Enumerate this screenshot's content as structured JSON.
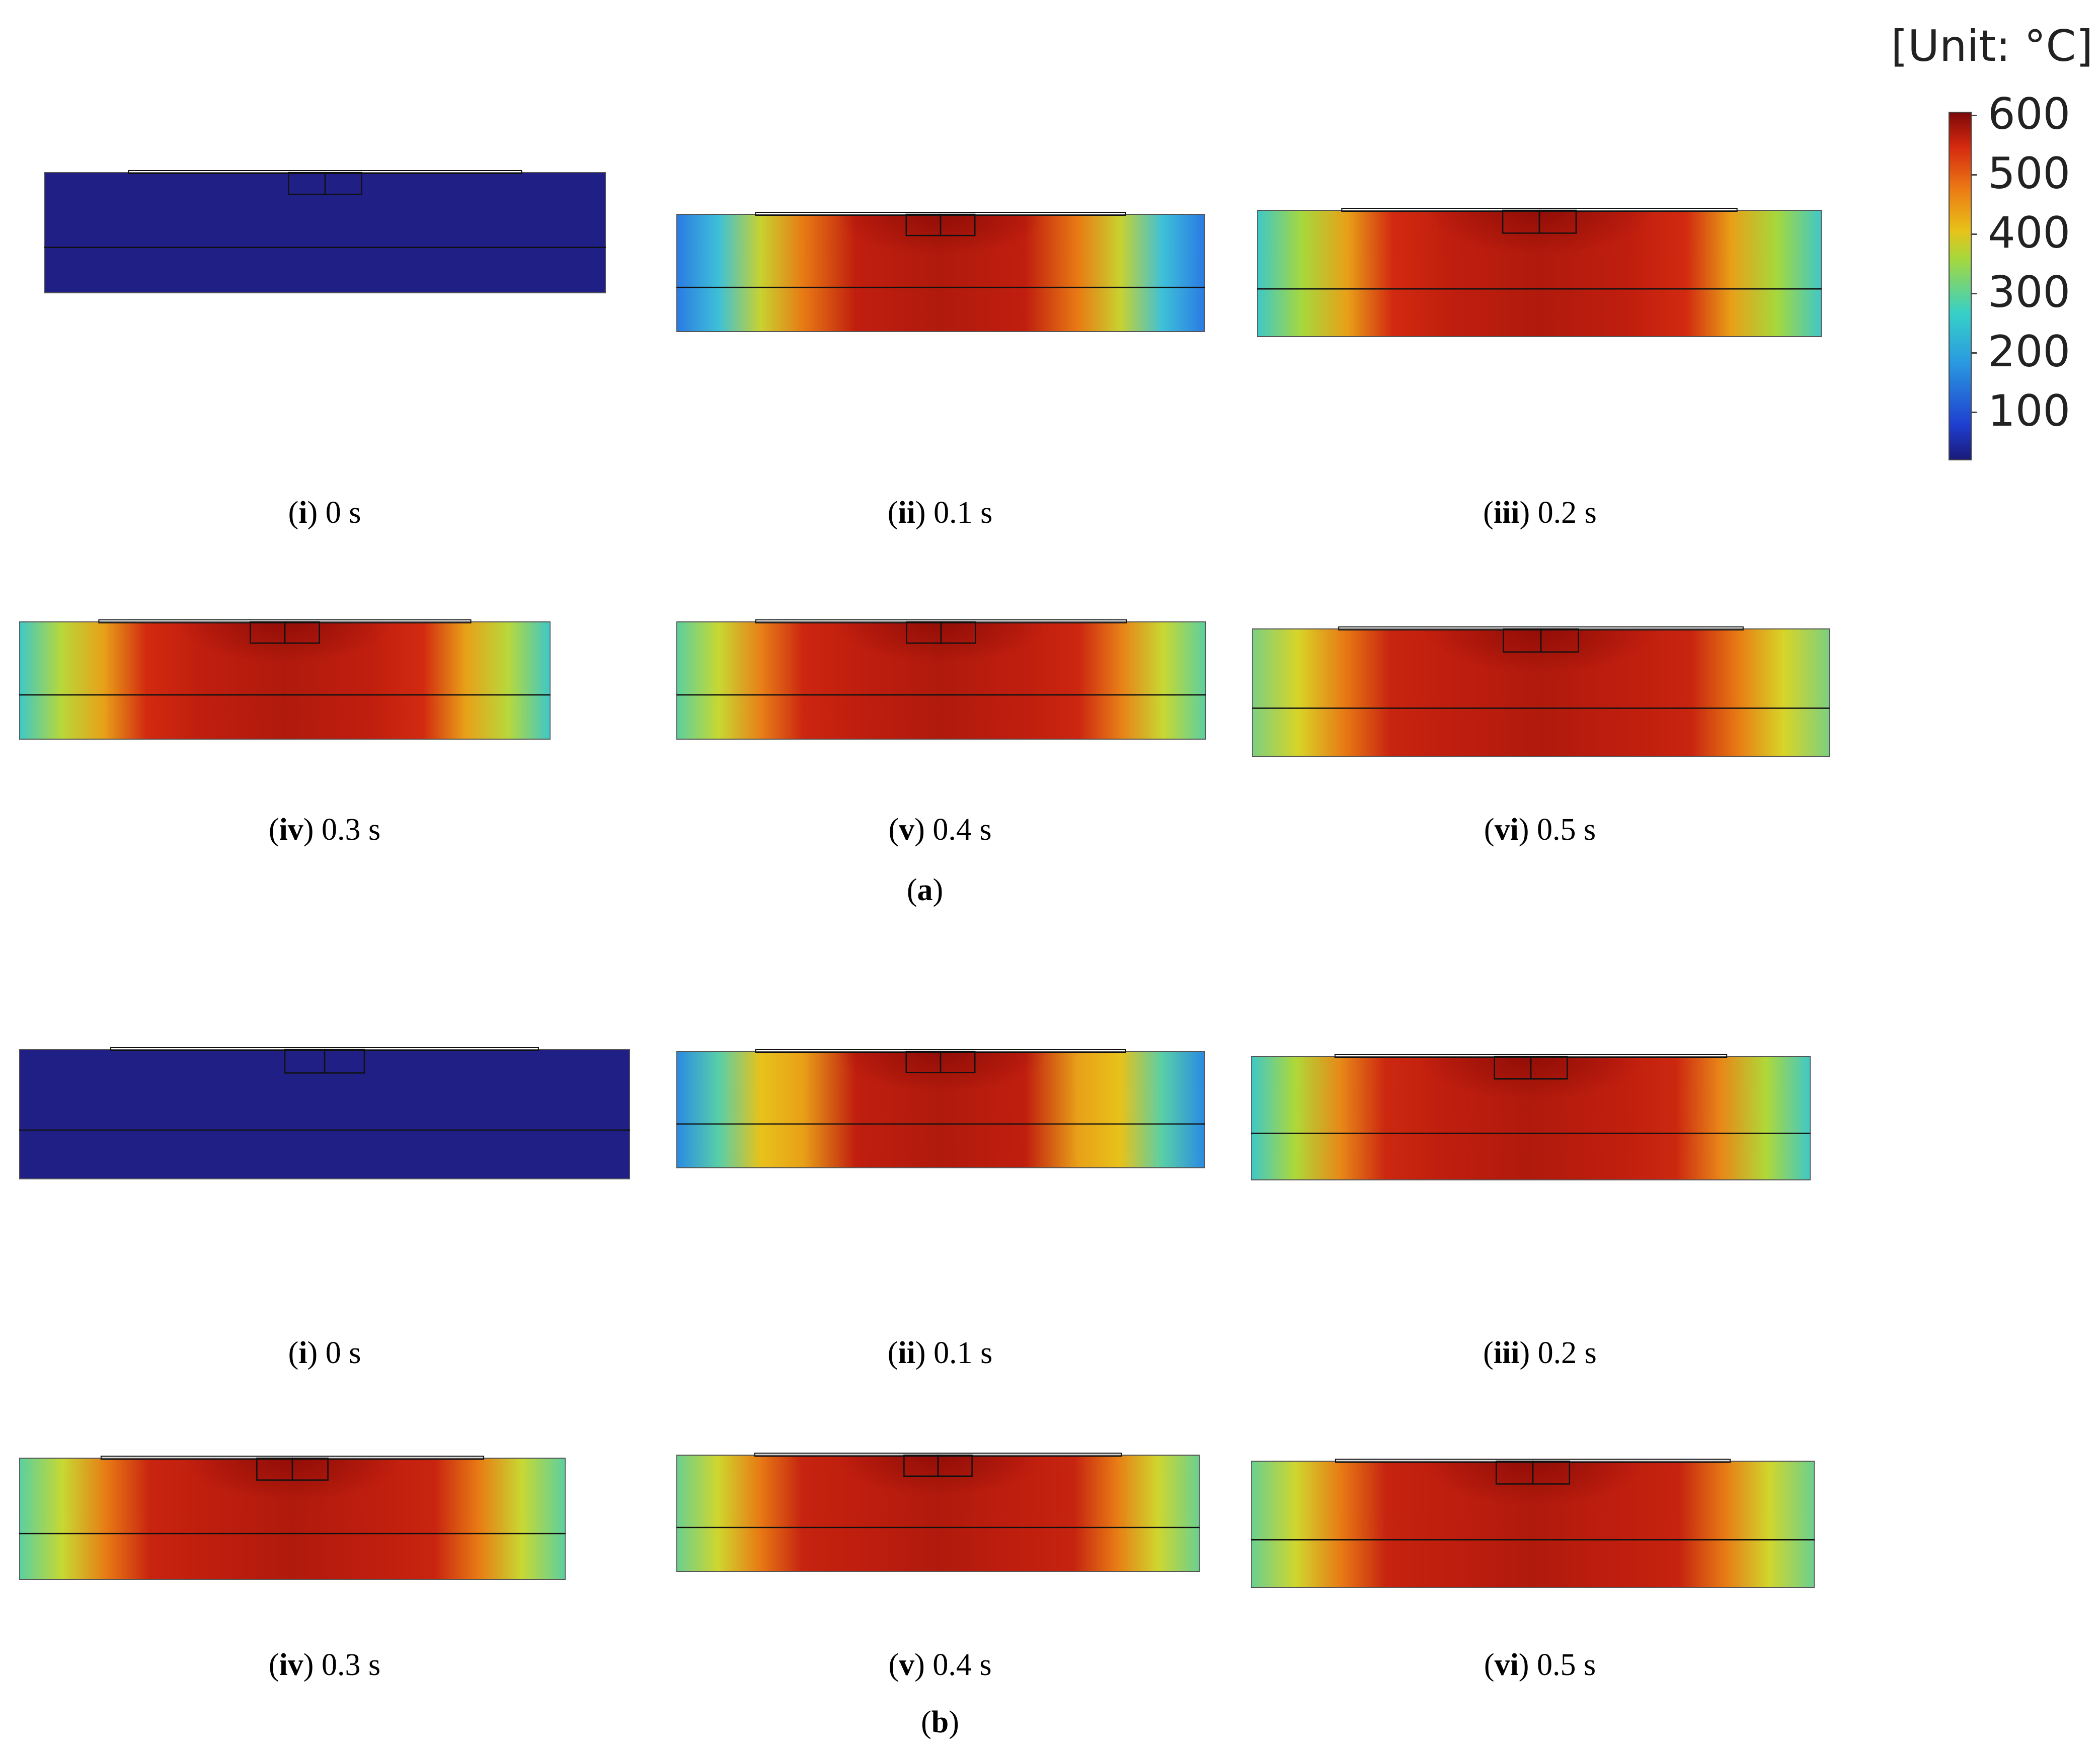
{
  "legend": {
    "unit_title": "[Unit: °C]",
    "max": 600,
    "min": 0,
    "ticks": [
      "600",
      "500",
      "400",
      "300",
      "200",
      "100"
    ],
    "colormap": [
      "#1a1a7a",
      "#1f3fd0",
      "#2a9ae0",
      "#36d0c8",
      "#a6d83c",
      "#e8c21a",
      "#ec7a14",
      "#d62a10",
      "#7d0808"
    ]
  },
  "groups": [
    {
      "label_id": "a",
      "panels": [
        {
          "num": "i",
          "time": "0 s",
          "time_s": 0,
          "max_temp_c": 20
        },
        {
          "num": "ii",
          "time": "0.1 s",
          "time_s": 0.1,
          "max_temp_c": 560
        },
        {
          "num": "iii",
          "time": "0.2 s",
          "time_s": 0.2,
          "max_temp_c": 580
        },
        {
          "num": "iv",
          "time": "0.3 s",
          "time_s": 0.3,
          "max_temp_c": 590
        },
        {
          "num": "v",
          "time": "0.4 s",
          "time_s": 0.4,
          "max_temp_c": 595
        },
        {
          "num": "vi",
          "time": "0.5 s",
          "time_s": 0.5,
          "max_temp_c": 600
        }
      ]
    },
    {
      "label_id": "b",
      "panels": [
        {
          "num": "i",
          "time": "0 s",
          "time_s": 0,
          "max_temp_c": 20
        },
        {
          "num": "ii",
          "time": "0.1 s",
          "time_s": 0.1,
          "max_temp_c": 520
        },
        {
          "num": "iii",
          "time": "0.2 s",
          "time_s": 0.2,
          "max_temp_c": 580
        },
        {
          "num": "iv",
          "time": "0.3 s",
          "time_s": 0.3,
          "max_temp_c": 590
        },
        {
          "num": "v",
          "time": "0.4 s",
          "time_s": 0.4,
          "max_temp_c": 595
        },
        {
          "num": "vi",
          "time": "0.5 s",
          "time_s": 0.5,
          "max_temp_c": 600
        }
      ]
    }
  ]
}
